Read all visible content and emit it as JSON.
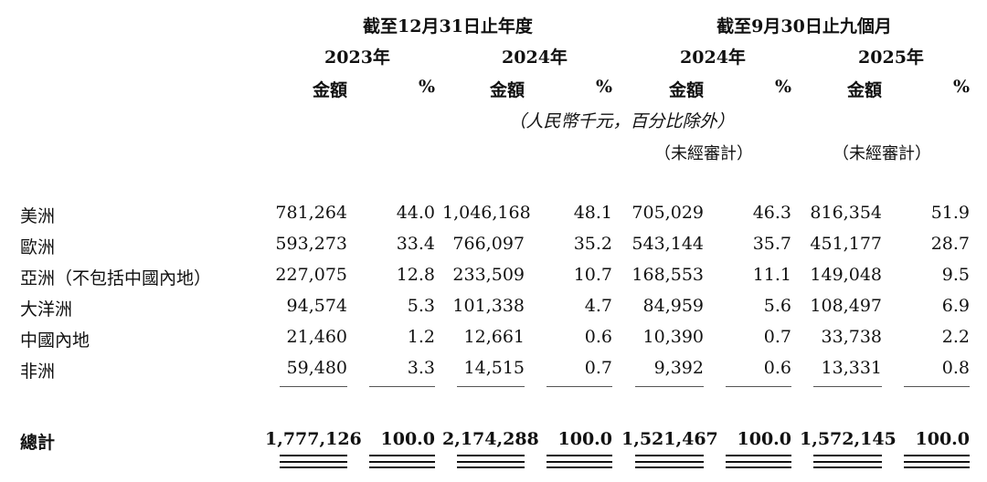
{
  "headers": {
    "group1": "截至12月31日止年度",
    "group2": "截至9月30日止九個月",
    "years": [
      "2023年",
      "2024年",
      "2024年",
      "2025年"
    ],
    "amount_label": "金額",
    "percent_label": "%",
    "unit_note": "（人民幣千元，百分比除外）",
    "unaudited": "（未經審計）"
  },
  "rows": [
    {
      "region": "美洲",
      "values": [
        "781,264",
        "44.0",
        "1,046,168",
        "48.1",
        "705,029",
        "46.3",
        "816,354",
        "51.9"
      ]
    },
    {
      "region": "歐洲",
      "values": [
        "593,273",
        "33.4",
        "766,097",
        "35.2",
        "543,144",
        "35.7",
        "451,177",
        "28.7"
      ]
    },
    {
      "region": "亞洲（不包括中國內地）",
      "values": [
        "227,075",
        "12.8",
        "233,509",
        "10.7",
        "168,553",
        "11.1",
        "149,048",
        "9.5"
      ]
    },
    {
      "region": "大洋洲",
      "values": [
        "94,574",
        "5.3",
        "101,338",
        "4.7",
        "84,959",
        "5.6",
        "108,497",
        "6.9"
      ]
    },
    {
      "region": "中國內地",
      "values": [
        "21,460",
        "1.2",
        "12,661",
        "0.6",
        "10,390",
        "0.7",
        "33,738",
        "2.2"
      ]
    },
    {
      "region": "非洲",
      "values": [
        "59,480",
        "3.3",
        "14,515",
        "0.7",
        "9,392",
        "0.6",
        "13,331",
        "0.8"
      ]
    }
  ],
  "total": {
    "label": "總計",
    "values": [
      "1,777,126",
      "100.0",
      "2,174,288",
      "100.0",
      "1,521,467",
      "100.0",
      "1,572,145",
      "100.0"
    ]
  }
}
